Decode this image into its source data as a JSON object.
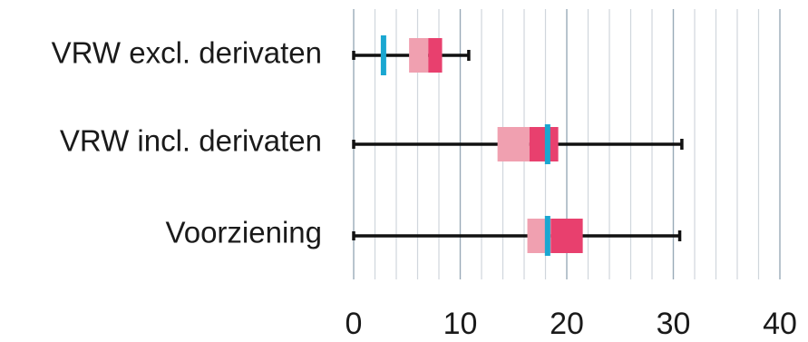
{
  "chart_data": {
    "type": "boxplot",
    "title": "",
    "xlabel": "",
    "ylabel": "",
    "xlim": [
      0,
      40
    ],
    "xticks": [
      0,
      10,
      20,
      30,
      40
    ],
    "minor_grid_step": 2,
    "grid": true,
    "categories": [
      "VRW excl. derivaten",
      "VRW incl. derivaten",
      "Voorziening"
    ],
    "boxes": [
      {
        "name": "VRW excl. derivaten",
        "min": 0,
        "q1": 5.2,
        "median": 7.0,
        "q3": 8.3,
        "max": 10.8,
        "marker": 2.8
      },
      {
        "name": "VRW incl. derivaten",
        "min": 0,
        "q1": 13.5,
        "median": 16.5,
        "q3": 19.2,
        "max": 30.8,
        "marker": 18.2
      },
      {
        "name": "Voorziening",
        "min": 0,
        "q1": 16.3,
        "median": 18.5,
        "q3": 21.5,
        "max": 30.6,
        "marker": 18.2
      }
    ],
    "colors": {
      "box_lower": "#f0a0b0",
      "box_upper": "#e8406e",
      "marker": "#1aa7d1",
      "whisker": "#111111",
      "major_grid": "#9aaab8",
      "minor_grid": "#d0d6dc"
    }
  }
}
